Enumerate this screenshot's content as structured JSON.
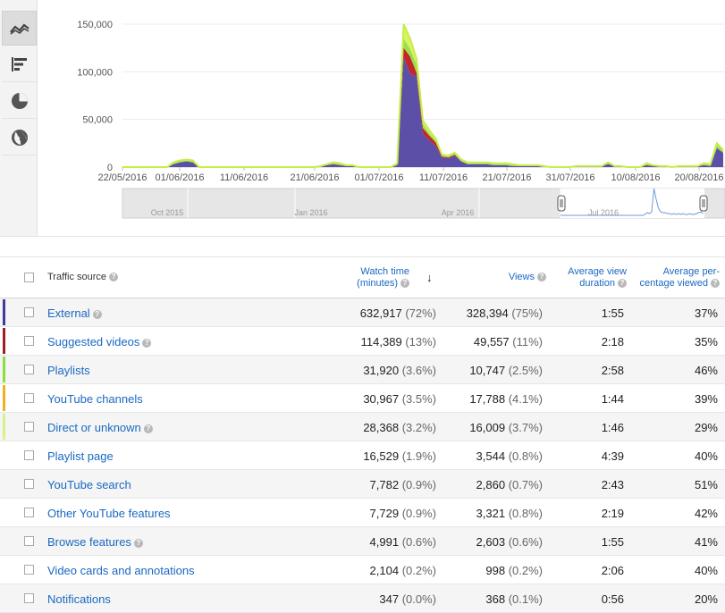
{
  "view_switcher": [
    {
      "name": "line-chart-icon",
      "active": true
    },
    {
      "name": "bar-chart-icon",
      "active": false
    },
    {
      "name": "pie-chart-icon",
      "active": false
    },
    {
      "name": "globe-icon",
      "active": false
    }
  ],
  "chart_data": {
    "type": "area",
    "x_ticks": [
      "22/05/2016",
      "01/06/2016",
      "11/06/2016",
      "21/06/2016",
      "01/07/2016",
      "11/07/2016",
      "21/07/2016",
      "31/07/2016",
      "10/08/2016",
      "20/08/2016"
    ],
    "y_ticks": [
      "150,000",
      "100,000",
      "50,000",
      "0"
    ],
    "ylim": [
      0,
      150000
    ],
    "x_start": "22/05/2016",
    "x_end": "22/08/2016",
    "navigator_labels": [
      "Oct 2015",
      "Jan 2016",
      "Apr 2016",
      "Jul 2016"
    ],
    "series": [
      {
        "name": "External",
        "color": "#5b4fa8",
        "values": [
          0,
          0,
          0,
          0,
          0,
          0,
          0,
          0,
          3000,
          5000,
          6000,
          5000,
          0,
          0,
          0,
          0,
          0,
          0,
          0,
          0,
          0,
          0,
          0,
          0,
          0,
          0,
          0,
          0,
          0,
          0,
          0,
          1000,
          2000,
          3000,
          2000,
          1000,
          1000,
          0,
          0,
          0,
          0,
          0,
          0,
          2000,
          115000,
          98000,
          95000,
          35000,
          28000,
          22000,
          10000,
          9000,
          12000,
          6000,
          3000,
          3000,
          3000,
          3000,
          2000,
          2000,
          2000,
          1000,
          1000,
          1000,
          1000,
          1000,
          0,
          0,
          0,
          0,
          0,
          1000,
          1000,
          1000,
          1000,
          1000,
          3000,
          1000,
          1000,
          0,
          0,
          0,
          2000,
          1000,
          1000,
          1000,
          0,
          1000,
          1000,
          1000,
          1000,
          2000,
          1000,
          20000,
          15000
        ]
      },
      {
        "name": "Suggested videos",
        "color": "#c1272d",
        "values": [
          0,
          0,
          0,
          0,
          0,
          0,
          0,
          0,
          0,
          0,
          0,
          0,
          0,
          0,
          0,
          0,
          0,
          0,
          0,
          0,
          0,
          0,
          0,
          0,
          0,
          0,
          0,
          0,
          0,
          0,
          0,
          0,
          0,
          0,
          0,
          0,
          0,
          0,
          0,
          0,
          0,
          0,
          0,
          0,
          10000,
          18000,
          4000,
          6000,
          5000,
          4000,
          1000,
          1000,
          1000,
          0,
          0,
          0,
          0,
          0,
          0,
          0,
          0,
          0,
          0,
          0,
          0,
          0,
          0,
          0,
          0,
          0,
          0,
          0,
          0,
          0,
          0,
          0,
          0,
          0,
          0,
          0,
          0,
          0,
          0,
          0,
          0,
          0,
          0,
          0,
          0,
          0,
          0,
          0,
          0,
          0,
          0
        ]
      },
      {
        "name": "Playlists",
        "color": "#9be04a",
        "values": [
          0,
          0,
          0,
          0,
          0,
          0,
          0,
          0,
          1000,
          1000,
          1000,
          1000,
          0,
          0,
          0,
          0,
          0,
          0,
          0,
          0,
          0,
          0,
          0,
          0,
          0,
          0,
          0,
          0,
          0,
          0,
          0,
          0,
          1000,
          1000,
          1000,
          1000,
          1000,
          0,
          0,
          0,
          0,
          0,
          0,
          1000,
          10000,
          8000,
          9000,
          4000,
          3000,
          2000,
          1000,
          1000,
          1000,
          1000,
          1000,
          1000,
          1000,
          1000,
          1000,
          1000,
          1000,
          1000,
          1000,
          1000,
          1000,
          1000,
          1000,
          0,
          0,
          0,
          0,
          0,
          0,
          0,
          0,
          0,
          1000,
          0,
          0,
          0,
          0,
          0,
          1000,
          1000,
          0,
          0,
          0,
          0,
          0,
          0,
          0,
          1000,
          1000,
          3000,
          2000
        ]
      },
      {
        "name": "Direct or unknown",
        "color": "#d8f26a",
        "values": [
          0,
          0,
          0,
          0,
          0,
          0,
          0,
          0,
          1000,
          1000,
          1000,
          1000,
          0,
          0,
          0,
          0,
          0,
          0,
          0,
          0,
          0,
          0,
          0,
          0,
          0,
          0,
          0,
          0,
          0,
          0,
          0,
          0,
          0,
          1000,
          1000,
          0,
          0,
          0,
          0,
          0,
          0,
          0,
          0,
          1000,
          15000,
          11000,
          6000,
          4000,
          3000,
          2000,
          1000,
          1000,
          1000,
          1000,
          1000,
          1000,
          1000,
          1000,
          1000,
          1000,
          1000,
          1000,
          0,
          0,
          0,
          0,
          0,
          0,
          0,
          0,
          0,
          0,
          0,
          0,
          0,
          0,
          1000,
          0,
          0,
          0,
          0,
          0,
          1000,
          0,
          0,
          0,
          0,
          0,
          0,
          0,
          0,
          1000,
          1000,
          2000,
          1000
        ]
      }
    ]
  },
  "table": {
    "headers": {
      "source": "Traffic source",
      "watch_time_line1": "Watch time",
      "watch_time_line2": "(minutes)",
      "views": "Views",
      "avg_dur_line1": "Average view",
      "avg_dur_line2": "duration",
      "avg_pct_line1": "Average per-",
      "avg_pct_line2": "centage viewed",
      "help_glyph": "?",
      "sort_glyph": "↓"
    },
    "rows": [
      {
        "name": "External",
        "help": true,
        "color": "#3f3c9a",
        "watch": "632,917",
        "watch_pct": "(72%)",
        "views": "328,394",
        "views_pct": "(75%)",
        "duration": "1:55",
        "pct_viewed": "37%"
      },
      {
        "name": "Suggested videos",
        "help": true,
        "color": "#9e1f25",
        "watch": "114,389",
        "watch_pct": "(13%)",
        "views": "49,557",
        "views_pct": "(11%)",
        "duration": "2:18",
        "pct_viewed": "35%"
      },
      {
        "name": "Playlists",
        "help": false,
        "color": "#8ddf3c",
        "watch": "31,920",
        "watch_pct": "(3.6%)",
        "views": "10,747",
        "views_pct": "(2.5%)",
        "duration": "2:58",
        "pct_viewed": "46%"
      },
      {
        "name": "YouTube channels",
        "help": false,
        "color": "#f2b021",
        "watch": "30,967",
        "watch_pct": "(3.5%)",
        "views": "17,788",
        "views_pct": "(4.1%)",
        "duration": "1:44",
        "pct_viewed": "39%"
      },
      {
        "name": "Direct or unknown",
        "help": true,
        "color": "#d7f285",
        "watch": "28,368",
        "watch_pct": "(3.2%)",
        "views": "16,009",
        "views_pct": "(3.7%)",
        "duration": "1:46",
        "pct_viewed": "29%"
      },
      {
        "name": "Playlist page",
        "help": false,
        "color": "",
        "watch": "16,529",
        "watch_pct": "(1.9%)",
        "views": "3,544",
        "views_pct": "(0.8%)",
        "duration": "4:39",
        "pct_viewed": "40%"
      },
      {
        "name": "YouTube search",
        "help": false,
        "color": "",
        "watch": "7,782",
        "watch_pct": "(0.9%)",
        "views": "2,860",
        "views_pct": "(0.7%)",
        "duration": "2:43",
        "pct_viewed": "51%"
      },
      {
        "name": "Other YouTube features",
        "help": false,
        "color": "",
        "watch": "7,729",
        "watch_pct": "(0.9%)",
        "views": "3,321",
        "views_pct": "(0.8%)",
        "duration": "2:19",
        "pct_viewed": "42%"
      },
      {
        "name": "Browse features",
        "help": true,
        "color": "",
        "watch": "4,991",
        "watch_pct": "(0.6%)",
        "views": "2,603",
        "views_pct": "(0.6%)",
        "duration": "1:55",
        "pct_viewed": "41%"
      },
      {
        "name": "Video cards and annotations",
        "help": false,
        "color": "",
        "watch": "2,104",
        "watch_pct": "(0.2%)",
        "views": "998",
        "views_pct": "(0.2%)",
        "duration": "2:06",
        "pct_viewed": "40%"
      },
      {
        "name": "Notifications",
        "help": false,
        "color": "",
        "watch": "347",
        "watch_pct": "(0.0%)",
        "views": "368",
        "views_pct": "(0.1%)",
        "duration": "0:56",
        "pct_viewed": "20%"
      }
    ]
  }
}
